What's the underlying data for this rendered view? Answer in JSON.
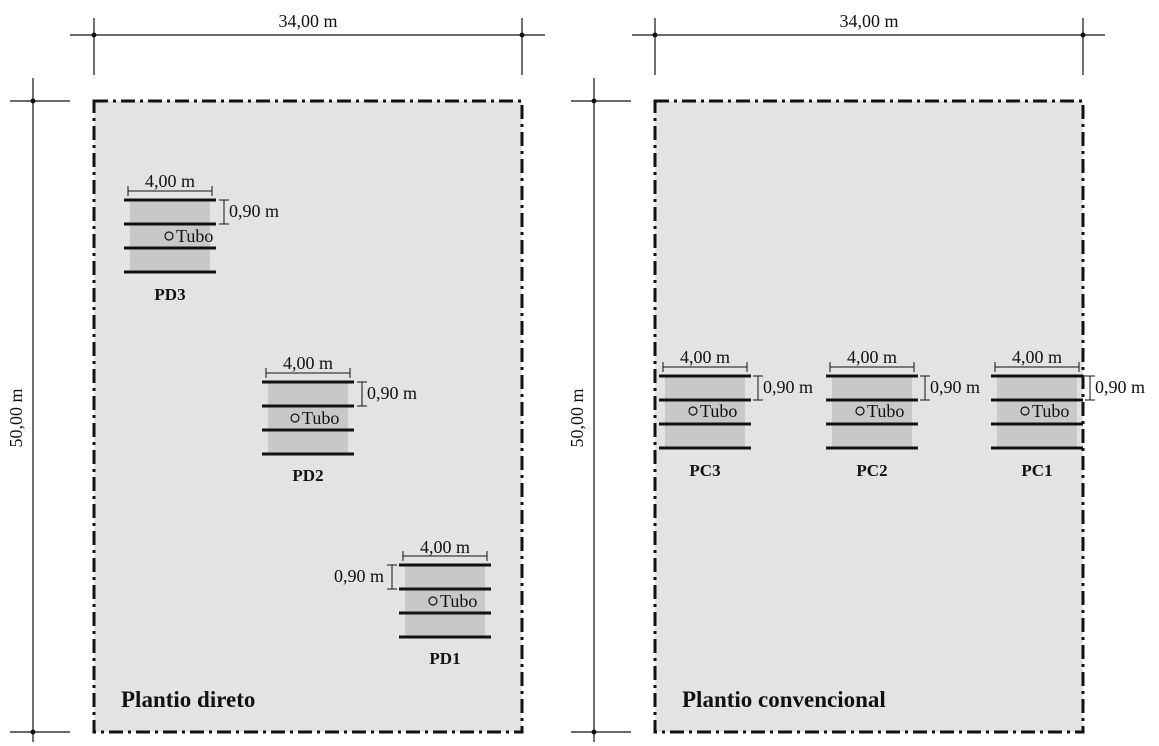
{
  "diagram": {
    "panels": [
      {
        "id": "left",
        "title": "Plantio direto",
        "width_label": "34,00 m",
        "height_label": "50,00 m",
        "plots": [
          {
            "name": "PD3",
            "width_label": "4,00 m",
            "spacing_label": "0,90 m",
            "tube_label": "Tubo"
          },
          {
            "name": "PD2",
            "width_label": "4,00 m",
            "spacing_label": "0,90 m",
            "tube_label": "Tubo"
          },
          {
            "name": "PD1",
            "width_label": "4,00 m",
            "spacing_label": "0,90 m",
            "tube_label": "Tubo"
          }
        ]
      },
      {
        "id": "right",
        "title": "Plantio convencional",
        "width_label": "34,00 m",
        "height_label": "50,00 m",
        "plots": [
          {
            "name": "PC3",
            "width_label": "4,00 m",
            "spacing_label": "0,90 m",
            "tube_label": "Tubo"
          },
          {
            "name": "PC2",
            "width_label": "4,00 m",
            "spacing_label": "0,90 m",
            "tube_label": "Tubo"
          },
          {
            "name": "PC1",
            "width_label": "4,00 m",
            "spacing_label": "0,90 m",
            "tube_label": "Tubo"
          }
        ]
      }
    ],
    "colors": {
      "field_fill": "#e3e3e3",
      "plot_fill": "#c8c8c8",
      "line": "#111111"
    }
  }
}
